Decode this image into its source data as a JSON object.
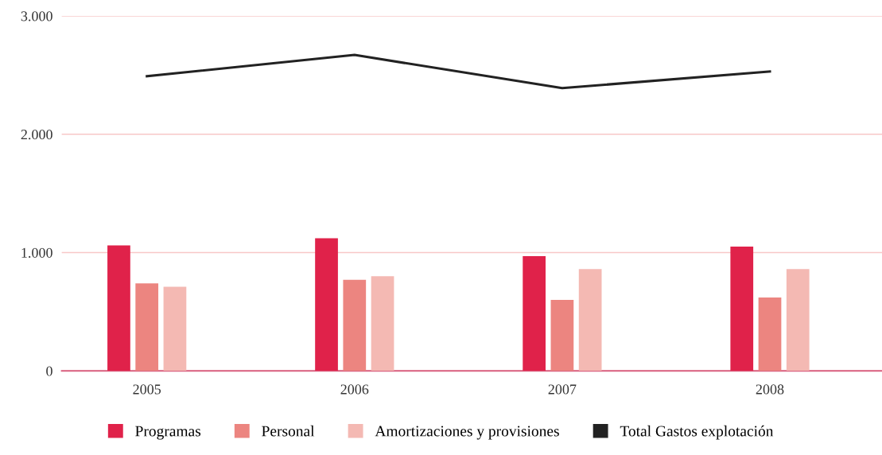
{
  "chart_data": {
    "type": "bar",
    "categories": [
      "2005",
      "2006",
      "2007",
      "2008"
    ],
    "series": [
      {
        "name": "Programas",
        "color": "#e0224a",
        "values": [
          1060,
          1120,
          970,
          1050
        ]
      },
      {
        "name": "Personal",
        "color": "#ec8580",
        "values": [
          740,
          770,
          600,
          620
        ]
      },
      {
        "name": "Amortizaciones y provisiones",
        "color": "#f4b9b3",
        "values": [
          710,
          800,
          860,
          860
        ]
      },
      {
        "name": "Total Gastos explotación",
        "color": "#222222",
        "type": "line",
        "values": [
          2490,
          2670,
          2390,
          2530
        ]
      }
    ],
    "ylim": [
      0,
      3000
    ],
    "yticks": [
      {
        "value": 0,
        "label": "0"
      },
      {
        "value": 1000,
        "label": "1.000"
      },
      {
        "value": 2000,
        "label": "2.000"
      },
      {
        "value": 3000,
        "label": "3.000"
      }
    ],
    "grid": "y",
    "legend": "bottom",
    "marker": "none",
    "line_style": "solid"
  }
}
